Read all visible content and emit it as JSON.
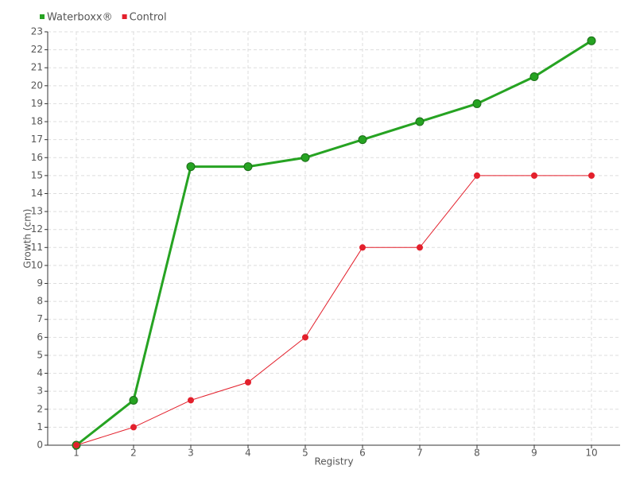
{
  "chart_data": {
    "type": "line",
    "x_label": "Registry",
    "y_label": "Growth (cm)",
    "x": [
      1,
      2,
      3,
      4,
      5,
      6,
      7,
      8,
      9,
      10
    ],
    "series": [
      {
        "name": "Waterboxx®",
        "color": "#26a322",
        "values": [
          0,
          2.5,
          15.5,
          15.5,
          16,
          17,
          18,
          19,
          20.5,
          22.5
        ]
      },
      {
        "name": "Control",
        "color": "#e3202c",
        "values": [
          0,
          1,
          2.5,
          3.5,
          6,
          11,
          11,
          15,
          15,
          15
        ]
      }
    ],
    "xlim": [
      0.5,
      10.5
    ],
    "xticks": [
      1,
      2,
      3,
      4,
      5,
      6,
      7,
      8,
      9,
      10
    ],
    "ylim": [
      0,
      23
    ],
    "yticks": [
      0,
      1,
      2,
      3,
      4,
      5,
      6,
      7,
      8,
      9,
      10,
      11,
      12,
      13,
      14,
      15,
      16,
      17,
      18,
      19,
      20,
      21,
      22,
      23
    ],
    "grid": true,
    "legend": "top-left"
  }
}
